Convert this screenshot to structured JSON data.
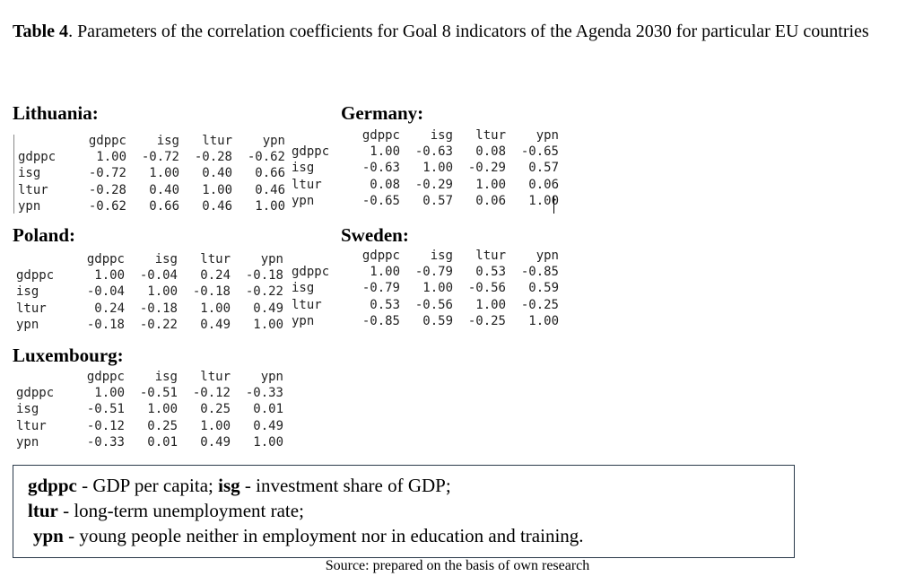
{
  "caption": {
    "label": "Table 4",
    "text": ". Parameters of the correlation coefficients for Goal 8 indicators of the Agenda 2030 for particular EU countries"
  },
  "columns": [
    "gdppc",
    "isg",
    "ltur",
    "ypn"
  ],
  "countries": [
    {
      "name": "Lithuania:",
      "rows": [
        {
          "label": "gdppc",
          "values": [
            "1.00",
            "-0.72",
            "-0.28",
            "-0.62"
          ]
        },
        {
          "label": "isg",
          "values": [
            "-0.72",
            "1.00",
            "0.40",
            "0.66"
          ]
        },
        {
          "label": "ltur",
          "values": [
            "-0.28",
            "0.40",
            "1.00",
            "0.46"
          ]
        },
        {
          "label": "ypn",
          "values": [
            "-0.62",
            "0.66",
            "0.46",
            "1.00"
          ]
        }
      ]
    },
    {
      "name": "Germany:",
      "rows": [
        {
          "label": "gdppc",
          "values": [
            "1.00",
            "-0.63",
            "0.08",
            "-0.65"
          ]
        },
        {
          "label": "isg",
          "values": [
            "-0.63",
            "1.00",
            "-0.29",
            "0.57"
          ]
        },
        {
          "label": "ltur",
          "values": [
            "0.08",
            "-0.29",
            "1.00",
            "0.06"
          ]
        },
        {
          "label": "ypn",
          "values": [
            "-0.65",
            "0.57",
            "0.06",
            "1.00"
          ]
        }
      ]
    },
    {
      "name": "Poland:",
      "rows": [
        {
          "label": "gdppc",
          "values": [
            "1.00",
            "-0.04",
            "0.24",
            "-0.18"
          ]
        },
        {
          "label": "isg",
          "values": [
            "-0.04",
            "1.00",
            "-0.18",
            "-0.22"
          ]
        },
        {
          "label": "ltur",
          "values": [
            "0.24",
            "-0.18",
            "1.00",
            "0.49"
          ]
        },
        {
          "label": "ypn",
          "values": [
            "-0.18",
            "-0.22",
            "0.49",
            "1.00"
          ]
        }
      ]
    },
    {
      "name": "Sweden:",
      "rows": [
        {
          "label": "gdppc",
          "values": [
            "1.00",
            "-0.79",
            "0.53",
            "-0.85"
          ]
        },
        {
          "label": "isg",
          "values": [
            "-0.79",
            "1.00",
            "-0.56",
            "0.59"
          ]
        },
        {
          "label": "ltur",
          "values": [
            "0.53",
            "-0.56",
            "1.00",
            "-0.25"
          ]
        },
        {
          "label": "ypn",
          "values": [
            "-0.85",
            "0.59",
            "-0.25",
            "1.00"
          ]
        }
      ]
    },
    {
      "name": "Luxembourg:",
      "rows": [
        {
          "label": "gdppc",
          "values": [
            "1.00",
            "-0.51",
            "-0.12",
            "-0.33"
          ]
        },
        {
          "label": "isg",
          "values": [
            "-0.51",
            "1.00",
            "0.25",
            "0.01"
          ]
        },
        {
          "label": "ltur",
          "values": [
            "-0.12",
            "0.25",
            "1.00",
            "0.49"
          ]
        },
        {
          "label": "ypn",
          "values": [
            "-0.33",
            "0.01",
            "0.49",
            "1.00"
          ]
        }
      ]
    }
  ],
  "legend": {
    "gdppc_term": "gdppc",
    "gdppc_def": " - GDP per capita; ",
    "isg_term": "isg",
    "isg_def": " - investment share of GDP;",
    "ltur_term": "ltur",
    "ltur_def": " - long-term unemployment rate;",
    "ypn_term": "ypn",
    "ypn_def": " - young people neither in employment nor in education and training."
  },
  "source": "Source: prepared on the basis of own research"
}
